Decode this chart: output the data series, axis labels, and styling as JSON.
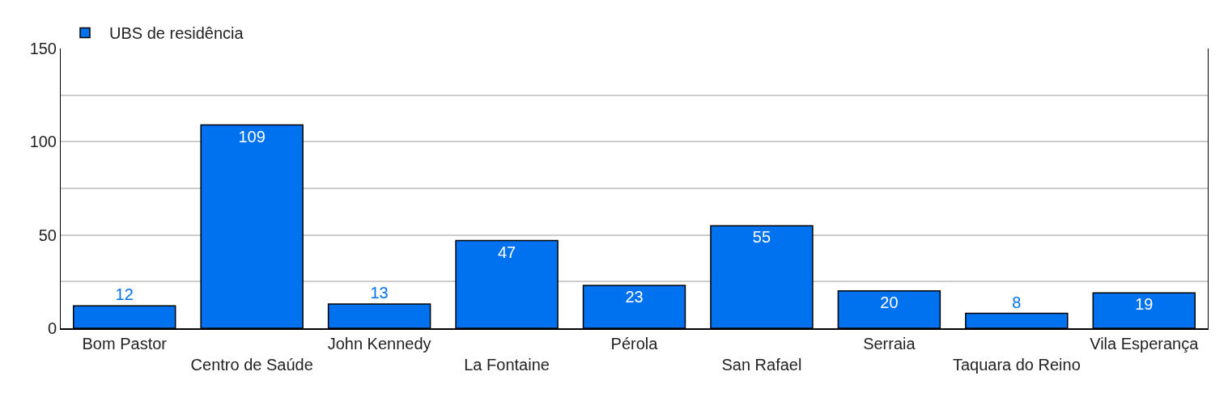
{
  "chart_data": {
    "type": "bar",
    "categories": [
      "Bom Pastor",
      "Centro de Saúde",
      "John Kennedy",
      "La Fontaine",
      "Pérola",
      "San Rafael",
      "Serraia",
      "Taquara do Reino",
      "Vila Esperança"
    ],
    "series": [
      {
        "name": "UBS de residência",
        "color": "#0071ef",
        "values": [
          12,
          109,
          13,
          47,
          23,
          55,
          20,
          8,
          19
        ]
      }
    ],
    "ylim": [
      0,
      150
    ],
    "yticks": [
      0,
      {
        "value": 25,
        "label": null
      },
      50,
      {
        "value": 75,
        "label": null
      },
      100,
      {
        "value": 125,
        "label": null
      },
      150
    ],
    "grid": "y",
    "legend": "top left",
    "data_labels": true
  }
}
